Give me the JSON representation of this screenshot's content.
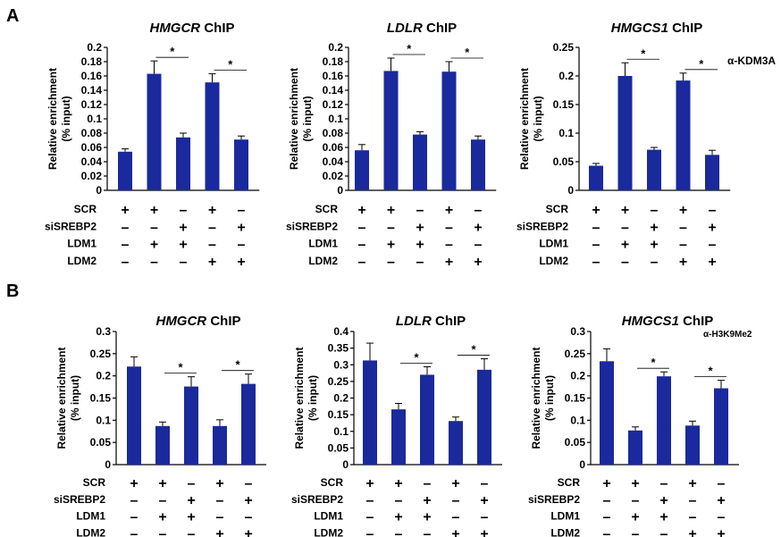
{
  "panels": [
    {
      "letter": "A",
      "antibody": "α-KDM3A"
    },
    {
      "letter": "B",
      "antibody": "α-H3K9Me2"
    }
  ],
  "row_labels": [
    "SCR",
    "siSREBP2",
    "LDM1",
    "LDM2"
  ],
  "chart_data": [
    {
      "type": "bar",
      "panel": "A",
      "title_gene": "HMGCR",
      "title_suffix": " ChIP",
      "ylabel": [
        "Relative enrichment",
        "(% input)"
      ],
      "ylim": [
        0,
        0.2
      ],
      "ticks": [
        "0",
        "0.02",
        "0.04",
        "0.06",
        "0.08",
        "0.1",
        "0.12",
        "0.14",
        "0.16",
        "0.18",
        "0.2"
      ],
      "values": [
        0.054,
        0.163,
        0.074,
        0.151,
        0.071
      ],
      "errors": [
        0.004,
        0.018,
        0.006,
        0.012,
        0.005
      ],
      "conditions": [
        [
          "+",
          "+",
          "–",
          "+",
          "–"
        ],
        [
          "–",
          "–",
          "+",
          "–",
          "+"
        ],
        [
          "–",
          "+",
          "+",
          "–",
          "–"
        ],
        [
          "–",
          "–",
          "–",
          "+",
          "+"
        ]
      ],
      "significance": [
        {
          "from": 1,
          "to": 2,
          "label": "*"
        },
        {
          "from": 3,
          "to": 4,
          "label": "*"
        }
      ],
      "color": "#1a2a9c"
    },
    {
      "type": "bar",
      "panel": "A",
      "title_gene": "LDLR",
      "title_suffix": " ChIP",
      "ylabel": [
        "Relative enrichment",
        "(% input)"
      ],
      "ylim": [
        0,
        0.2
      ],
      "ticks": [
        "0",
        "0.02",
        "0.04",
        "0.06",
        "0.08",
        "0.1",
        "0.12",
        "0.14",
        "0.16",
        "0.18",
        "0.2"
      ],
      "values": [
        0.056,
        0.167,
        0.078,
        0.166,
        0.071
      ],
      "errors": [
        0.008,
        0.018,
        0.004,
        0.014,
        0.005
      ],
      "conditions": [
        [
          "+",
          "+",
          "–",
          "+",
          "–"
        ],
        [
          "–",
          "–",
          "+",
          "–",
          "+"
        ],
        [
          "–",
          "+",
          "+",
          "–",
          "–"
        ],
        [
          "–",
          "–",
          "–",
          "+",
          "+"
        ]
      ],
      "significance": [
        {
          "from": 1,
          "to": 2,
          "label": "*"
        },
        {
          "from": 3,
          "to": 4,
          "label": "*"
        }
      ],
      "color": "#1a2a9c"
    },
    {
      "type": "bar",
      "panel": "A",
      "title_gene": "HMGCS1",
      "title_suffix": " ChIP",
      "ylabel": [
        "Relative enrichment",
        "(% input)"
      ],
      "ylim": [
        0,
        0.25
      ],
      "ticks": [
        "0",
        "0.05",
        "0.1",
        "0.15",
        "0.2",
        "0.25"
      ],
      "values": [
        0.043,
        0.2,
        0.071,
        0.192,
        0.062
      ],
      "errors": [
        0.004,
        0.023,
        0.004,
        0.013,
        0.008
      ],
      "conditions": [
        [
          "+",
          "+",
          "–",
          "+",
          "–"
        ],
        [
          "–",
          "–",
          "+",
          "–",
          "+"
        ],
        [
          "–",
          "+",
          "+",
          "–",
          "–"
        ],
        [
          "–",
          "–",
          "–",
          "+",
          "+"
        ]
      ],
      "significance": [
        {
          "from": 1,
          "to": 2,
          "label": "*"
        },
        {
          "from": 3,
          "to": 4,
          "label": "*"
        }
      ],
      "color": "#1a2a9c"
    },
    {
      "type": "bar",
      "panel": "B",
      "title_gene": "HMGCR",
      "title_suffix": " ChIP",
      "ylabel": [
        "Relative enrichment",
        "(% input)"
      ],
      "ylim": [
        0,
        0.3
      ],
      "ticks": [
        "0",
        "0.05",
        "0.1",
        "0.15",
        "0.2",
        "0.25",
        "0.3"
      ],
      "values": [
        0.221,
        0.087,
        0.176,
        0.087,
        0.182
      ],
      "errors": [
        0.022,
        0.009,
        0.022,
        0.014,
        0.022
      ],
      "conditions": [
        [
          "+",
          "+",
          "–",
          "+",
          "–"
        ],
        [
          "–",
          "–",
          "+",
          "–",
          "+"
        ],
        [
          "–",
          "+",
          "+",
          "–",
          "–"
        ],
        [
          "–",
          "–",
          "–",
          "+",
          "+"
        ]
      ],
      "significance": [
        {
          "from": 1,
          "to": 2,
          "label": "*"
        },
        {
          "from": 3,
          "to": 4,
          "label": "*"
        }
      ],
      "color": "#1a2a9c"
    },
    {
      "type": "bar",
      "panel": "B",
      "title_gene": "LDLR",
      "title_suffix": " ChIP",
      "ylabel": [
        "Relative enrichment",
        "(% input)"
      ],
      "ylim": [
        0,
        0.4
      ],
      "ticks": [
        "0",
        "0.05",
        "0.1",
        "0.15",
        "0.2",
        "0.25",
        "0.3",
        "0.35",
        "0.4"
      ],
      "values": [
        0.313,
        0.166,
        0.27,
        0.131,
        0.285
      ],
      "errors": [
        0.052,
        0.018,
        0.024,
        0.012,
        0.033
      ],
      "conditions": [
        [
          "+",
          "+",
          "–",
          "+",
          "–"
        ],
        [
          "–",
          "–",
          "+",
          "–",
          "+"
        ],
        [
          "–",
          "+",
          "+",
          "–",
          "–"
        ],
        [
          "–",
          "–",
          "–",
          "+",
          "+"
        ]
      ],
      "significance": [
        {
          "from": 1,
          "to": 2,
          "label": "*"
        },
        {
          "from": 3,
          "to": 4,
          "label": "*"
        }
      ],
      "color": "#1a2a9c"
    },
    {
      "type": "bar",
      "panel": "B",
      "title_gene": "HMGCS1",
      "title_suffix": " ChIP",
      "ylabel": [
        "Relative enrichment",
        "(% input)"
      ],
      "ylim": [
        0,
        0.3
      ],
      "ticks": [
        "0",
        "0.05",
        "0.1",
        "0.15",
        "0.2",
        "0.25",
        "0.3"
      ],
      "values": [
        0.233,
        0.077,
        0.199,
        0.088,
        0.172
      ],
      "errors": [
        0.028,
        0.008,
        0.01,
        0.01,
        0.018
      ],
      "conditions": [
        [
          "+",
          "+",
          "–",
          "+",
          "–"
        ],
        [
          "–",
          "–",
          "+",
          "–",
          "+"
        ],
        [
          "–",
          "+",
          "+",
          "–",
          "–"
        ],
        [
          "–",
          "–",
          "–",
          "+",
          "+"
        ]
      ],
      "significance": [
        {
          "from": 1,
          "to": 2,
          "label": "*"
        },
        {
          "from": 3,
          "to": 4,
          "label": "*"
        }
      ],
      "color": "#1a2a9c"
    }
  ]
}
